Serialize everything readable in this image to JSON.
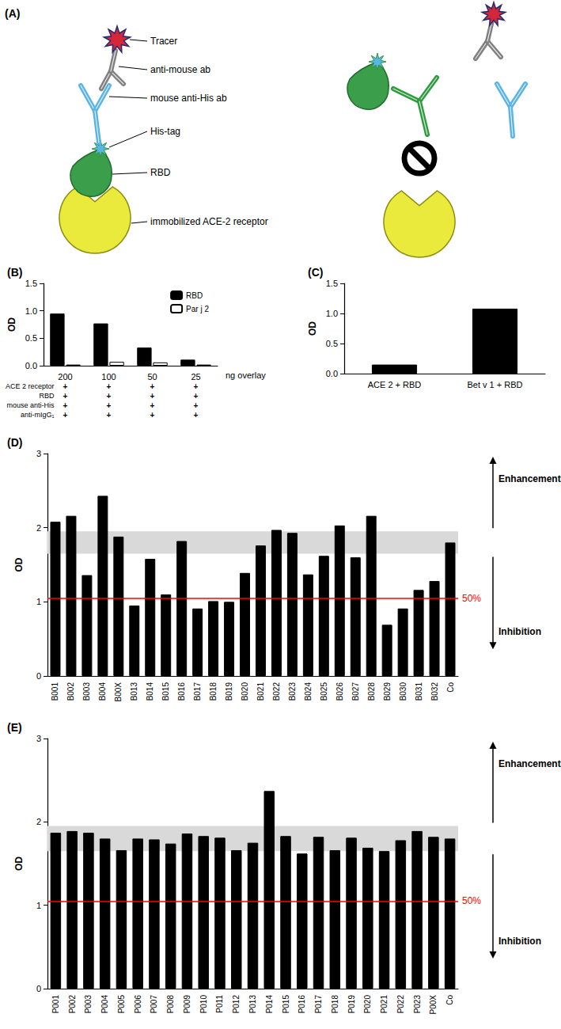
{
  "diagram": {
    "panel": "(A)",
    "labels": {
      "tracer": "Tracer",
      "anti_mouse_ab": "anti-mouse ab",
      "mouse_anti_his_ab": "mouse anti-His ab",
      "his_tag": "His-tag",
      "rbd": "RBD",
      "ace2": "immobilized ACE-2 receptor"
    }
  },
  "chart_data": [
    {
      "type": "bar",
      "title": "(B)",
      "y_label": "OD",
      "x_label": "ng overlay",
      "categories": [
        "200",
        "100",
        "50",
        "25"
      ],
      "series": [
        {
          "name": "RBD",
          "color": "#000000",
          "values": [
            0.95,
            0.77,
            0.33,
            0.11
          ]
        },
        {
          "name": "Par j 2",
          "color": "#ffffff",
          "values": [
            0.02,
            0.07,
            0.06,
            0.02
          ]
        }
      ],
      "ylim": [
        0,
        1.5
      ],
      "yticks": [
        {
          "value": 0,
          "label": "0.0"
        },
        0.5,
        {
          "value": 1,
          "label": "1.0"
        },
        1.5
      ],
      "legend": "upper right",
      "condition_rows": [
        {
          "label": "ACE 2 receptor",
          "marks": [
            "+",
            "+",
            "+",
            "+"
          ]
        },
        {
          "label": "RBD",
          "marks": [
            "+",
            "+",
            "+",
            "+"
          ]
        },
        {
          "label": "mouse anti-His",
          "marks": [
            "+",
            "+",
            "+",
            "+"
          ]
        },
        {
          "label": "anti-mIgG₁",
          "marks": [
            "+",
            "+",
            "+",
            "+"
          ]
        }
      ]
    },
    {
      "type": "bar",
      "title": "(C)",
      "y_label": "OD",
      "categories": [
        "ACE 2 + RBD",
        "Bet v 1 + RBD"
      ],
      "values": [
        0.15,
        1.08
      ],
      "color": "#000000",
      "ylim": [
        0,
        1.5
      ],
      "yticks": [
        {
          "value": 0,
          "label": "0.0"
        },
        0.5,
        {
          "value": 1,
          "label": "1.0"
        },
        1.5
      ]
    },
    {
      "type": "bar",
      "title": "(D)",
      "y_label": "OD",
      "categories": [
        "B001",
        "B002",
        "B003",
        "B004",
        "B00X",
        "B013",
        "B014",
        "B015",
        "B016",
        "B017",
        "B018",
        "B019",
        "B020",
        "B021",
        "B022",
        "B023",
        "B024",
        "B025",
        "B026",
        "B027",
        "B028",
        "B029",
        "B030",
        "B031",
        "B032",
        "Co"
      ],
      "values": [
        2.08,
        2.16,
        1.36,
        2.43,
        1.88,
        0.95,
        1.58,
        1.1,
        1.82,
        0.91,
        1.01,
        1.0,
        1.39,
        1.76,
        1.97,
        1.93,
        1.37,
        1.62,
        2.03,
        1.6,
        2.16,
        0.69,
        0.91,
        1.16,
        1.28,
        1.8
      ],
      "color": "#000000",
      "ylim": [
        0,
        3
      ],
      "yticks": [
        0,
        1,
        2,
        3
      ],
      "band": {
        "range": [
          1.65,
          1.95
        ],
        "color": "#d9d9d9"
      },
      "reference_line": {
        "value": 1.05,
        "label": "50%",
        "color": "#ff0000"
      },
      "annotations": [
        {
          "text": "Enhancement",
          "direction": "up"
        },
        {
          "text": "Inhibition",
          "direction": "down"
        }
      ]
    },
    {
      "type": "bar",
      "title": "(E)",
      "y_label": "OD",
      "categories": [
        "P001",
        "P002",
        "P003",
        "P004",
        "P005",
        "P006",
        "P007",
        "P008",
        "P009",
        "P010",
        "P011",
        "P012",
        "P013",
        "P014",
        "P015",
        "P016",
        "P017",
        "P018",
        "P019",
        "P020",
        "P021",
        "P022",
        "P023",
        "P00X",
        "Co"
      ],
      "values": [
        1.87,
        1.89,
        1.87,
        1.8,
        1.66,
        1.8,
        1.79,
        1.74,
        1.86,
        1.83,
        1.81,
        1.66,
        1.75,
        2.37,
        1.83,
        1.62,
        1.82,
        1.66,
        1.81,
        1.69,
        1.65,
        1.78,
        1.89,
        1.82,
        1.8
      ],
      "color": "#000000",
      "ylim": [
        0,
        3
      ],
      "yticks": [
        0,
        1,
        2,
        3
      ],
      "band": {
        "range": [
          1.65,
          1.95
        ],
        "color": "#d9d9d9"
      },
      "reference_line": {
        "value": 1.05,
        "label": "50%",
        "color": "#ff0000"
      },
      "annotations": [
        {
          "text": "Enhancement",
          "direction": "up"
        },
        {
          "text": "Inhibition",
          "direction": "down"
        }
      ]
    }
  ]
}
